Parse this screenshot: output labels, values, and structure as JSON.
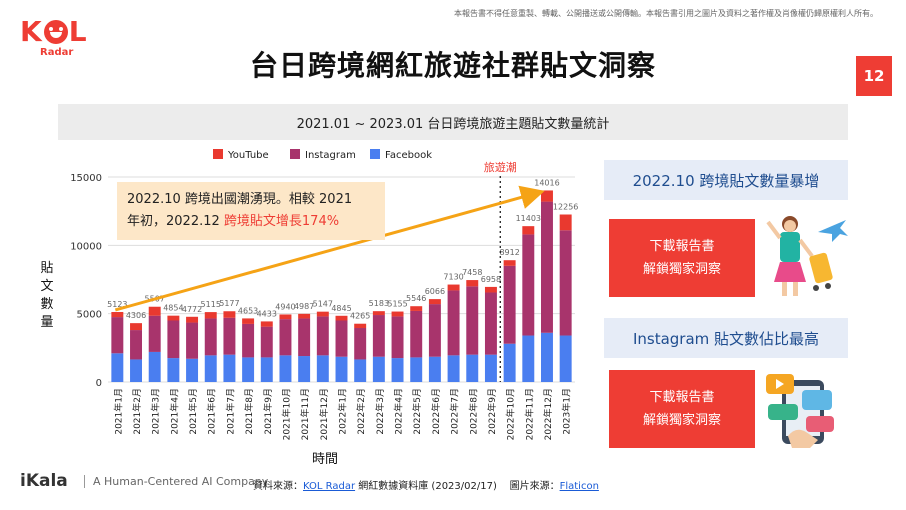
{
  "copyright": "本報告書不得任意重製、轉載、公開播送或公開傳輸。本報告書引用之圖片及資料之著作權及肖像權仍歸原權利人所有。",
  "logo": {
    "word_left": "K",
    "word_right": "L",
    "sub": "Radar"
  },
  "page_title": "台日跨境網紅旅遊社群貼文洞察",
  "page_number": "12",
  "chart_header": "2021.01 ~ 2023.01 台日跨境旅遊主題貼文數量統計",
  "annotation": {
    "line1": "2022.10 跨境出國潮湧現。相較 2021",
    "line2_prefix": "年初，2022.12 ",
    "line2_highlight": "跨境貼文增長174%"
  },
  "side": {
    "label1": "2022.10 跨境貼文數量暴增",
    "label2": "Instagram 貼文數佔比最高",
    "button1": {
      "line1": "下載報告書",
      "line2": "解鎖獨家洞察"
    },
    "button2": {
      "line1": "下載報告書",
      "line2": "解鎖獨家洞察"
    }
  },
  "footer": {
    "brand": "iKala",
    "tagline": "A Human-Centered AI Company",
    "source_prefix": "資料來源：",
    "source_link": "KOL Radar",
    "source_suffix": " 網紅數據資料庫 (2023/02/17)    圖片來源：",
    "image_link": "Flaticon"
  },
  "colors": {
    "youtube": "#e9392f",
    "instagram": "#a8346c",
    "facebook": "#4a7ef0",
    "accent": "#ee3d34",
    "arrow": "#f5a316"
  },
  "chart_data": {
    "type": "bar",
    "stacked": true,
    "categories": [
      "2021年1月",
      "2021年2月",
      "2021年3月",
      "2021年4月",
      "2021年5月",
      "2021年6月",
      "2021年7月",
      "2021年8月",
      "2021年9月",
      "2021年10月",
      "2021年11月",
      "2021年12月",
      "2022年1月",
      "2022年2月",
      "2022年3月",
      "2022年4月",
      "2022年5月",
      "2022年6月",
      "2022年7月",
      "2022年8月",
      "2022年9月",
      "2022年10月",
      "2022年11月",
      "2022年12月",
      "2023年1月"
    ],
    "series": [
      {
        "name": "Facebook",
        "color": "#4a7ef0",
        "values": [
          2100,
          1650,
          2200,
          1750,
          1700,
          1950,
          2000,
          1800,
          1800,
          1950,
          1900,
          1950,
          1850,
          1650,
          1850,
          1750,
          1800,
          1850,
          1950,
          2000,
          2000,
          2800,
          3400,
          3600,
          3400
        ]
      },
      {
        "name": "Instagram",
        "color": "#a8346c",
        "values": [
          2650,
          2150,
          2650,
          2750,
          2650,
          2700,
          2700,
          2450,
          2250,
          2650,
          2750,
          2850,
          2650,
          2300,
          3050,
          3050,
          3400,
          3850,
          4750,
          5000,
          4550,
          5700,
          7400,
          9600,
          7700
        ]
      },
      {
        "name": "YouTube",
        "color": "#e9392f",
        "values": [
          373,
          506,
          657,
          354,
          422,
          465,
          477,
          403,
          383,
          341,
          337,
          347,
          345,
          315,
          283,
          355,
          346,
          366,
          430,
          458,
          408,
          412,
          603,
          816,
          1156
        ]
      }
    ],
    "totals": [
      5123,
      4306,
      5507,
      4854,
      4772,
      5115,
      5177,
      4653,
      4433,
      4940,
      4987,
      5147,
      4845,
      4265,
      5183,
      5155,
      5546,
      6066,
      7130,
      7458,
      6958,
      8912,
      11403,
      14016,
      12256
    ],
    "total_labels": [
      "5123",
      "4306",
      "5507",
      "4854",
      "4772",
      "5115",
      "5177",
      "4653",
      "4433",
      "4940",
      "4987",
      "5147",
      "4845",
      "4265",
      "5183",
      "5155",
      "5546",
      "6066",
      "7130",
      "7458",
      "6958",
      "8912",
      "11403",
      "14016",
      "12256"
    ],
    "yticks": [
      "0",
      "5000",
      "10000",
      "15000"
    ],
    "ylim": [
      0,
      15000
    ],
    "ylabel": "貼文數量",
    "xlabel": "時間",
    "legend": [
      "YouTube",
      "Instagram",
      "Facebook"
    ],
    "legend_position": "top",
    "divider_label": "旅遊潮",
    "divider_after_category": "2022年9月",
    "trend_arrow": {
      "from": "2021年1月",
      "to": "2022年12月"
    }
  }
}
